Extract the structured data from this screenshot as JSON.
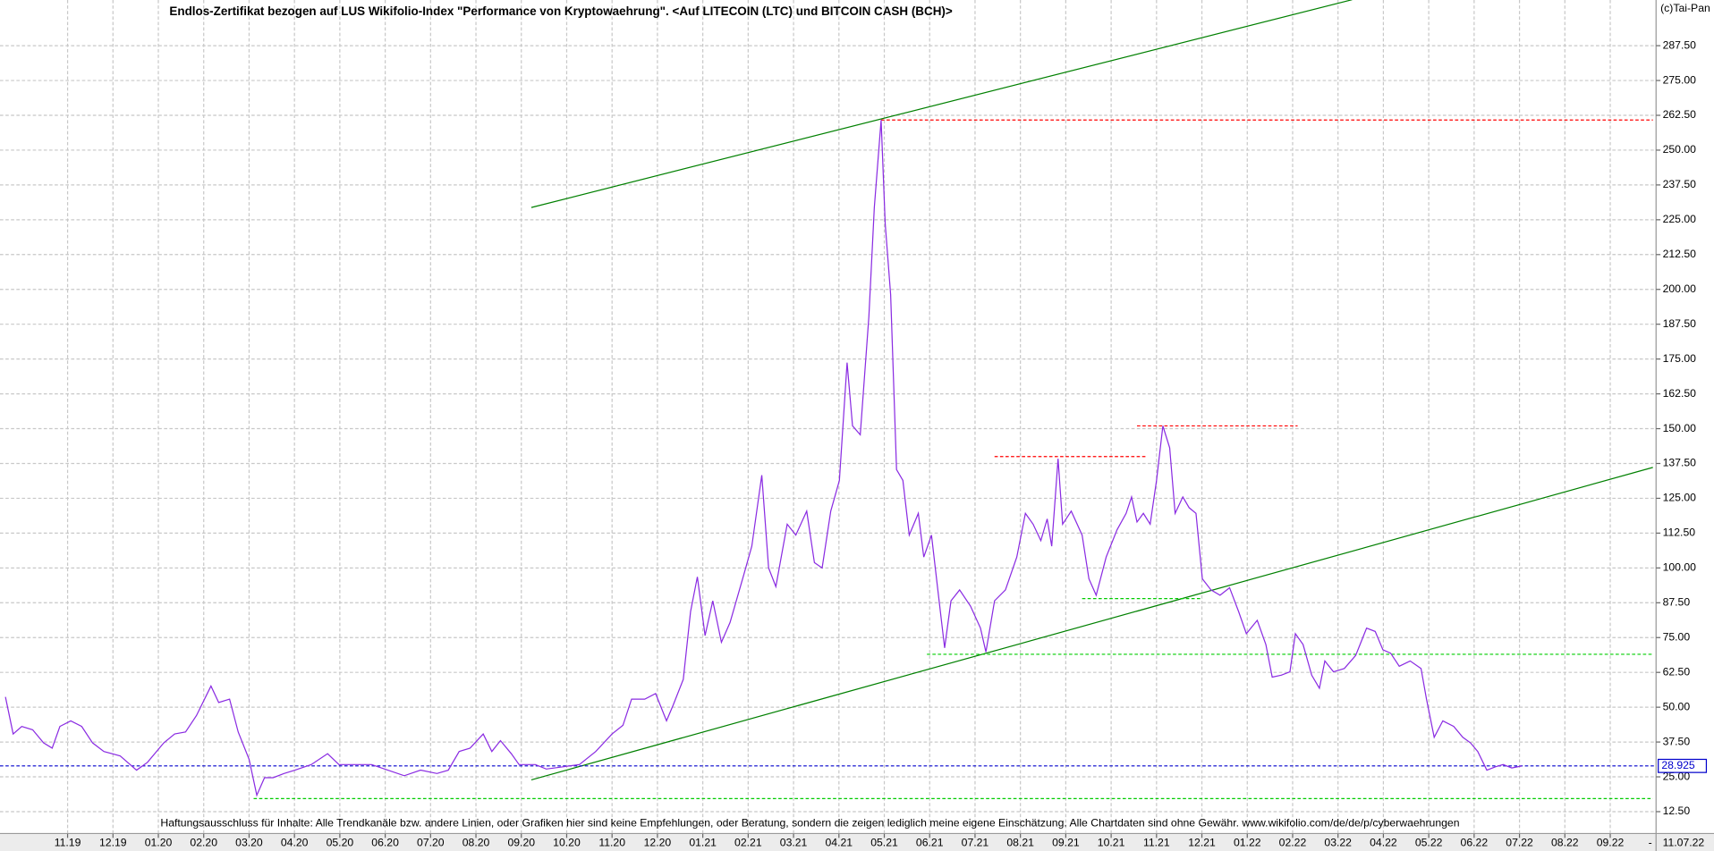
{
  "chart_data": {
    "type": "line",
    "title": "Endlos-Zertifikat bezogen auf LUS Wikifolio-Index \"Performance von Kryptowaehrung\". <Auf LITECOIN (LTC) und BITCOIN CASH (BCH)>",
    "copyright": "(c)Tai-Pan",
    "footnote": "Haftungsausschluss für Inhalte: Alle Trendkanäle bzw. andere Linien, oder Grafiken hier sind keine Empfehlungen, oder Beratung, sondern die zeigen lediglich meine eigene Einschätzung. Alle Chartdaten sind ohne Gewähr.  www.wikifolio.com/de/de/p/cyberwaehrungen",
    "date_label": "11.07.22",
    "current_value": 28.925,
    "current_color": "#0000cc",
    "color": "#8a2be2",
    "grid": true,
    "xlim": [
      -1.49,
      35.01
    ],
    "ylim": [
      4.65,
      303.9
    ],
    "xticks": [
      {
        "value": 0,
        "label": "11.19"
      },
      {
        "value": 1,
        "label": "12.19"
      },
      {
        "value": 2,
        "label": "01.20"
      },
      {
        "value": 3,
        "label": "02.20"
      },
      {
        "value": 4,
        "label": "03.20"
      },
      {
        "value": 5,
        "label": "04.20"
      },
      {
        "value": 6,
        "label": "05.20"
      },
      {
        "value": 7,
        "label": "06.20"
      },
      {
        "value": 8,
        "label": "07.20"
      },
      {
        "value": 9,
        "label": "08.20"
      },
      {
        "value": 10,
        "label": "09.20"
      },
      {
        "value": 11,
        "label": "10.20"
      },
      {
        "value": 12,
        "label": "11.20"
      },
      {
        "value": 13,
        "label": "12.20"
      },
      {
        "value": 14,
        "label": "01.21"
      },
      {
        "value": 15,
        "label": "02.21"
      },
      {
        "value": 16,
        "label": "03.21"
      },
      {
        "value": 17,
        "label": "04.21"
      },
      {
        "value": 18,
        "label": "05.21"
      },
      {
        "value": 19,
        "label": "06.21"
      },
      {
        "value": 20,
        "label": "07.21"
      },
      {
        "value": 21,
        "label": "08.21"
      },
      {
        "value": 22,
        "label": "09.21"
      },
      {
        "value": 23,
        "label": "10.21"
      },
      {
        "value": 24,
        "label": "11.21"
      },
      {
        "value": 25,
        "label": "12.21"
      },
      {
        "value": 26,
        "label": "01.22"
      },
      {
        "value": 27,
        "label": "02.22"
      },
      {
        "value": 28,
        "label": "03.22"
      },
      {
        "value": 29,
        "label": "04.22"
      },
      {
        "value": 30,
        "label": "05.22"
      },
      {
        "value": 31,
        "label": "06.22"
      },
      {
        "value": 32,
        "label": "07.22"
      },
      {
        "value": 33,
        "label": "08.22"
      },
      {
        "value": 34,
        "label": "09.22"
      }
    ],
    "yticks": [
      {
        "value": 12.5,
        "label": "12.50"
      },
      {
        "value": 25,
        "label": "25.00"
      },
      {
        "value": 37.5,
        "label": "37.50"
      },
      {
        "value": 50,
        "label": "50.00"
      },
      {
        "value": 62.5,
        "label": "62.50"
      },
      {
        "value": 75,
        "label": "75.00"
      },
      {
        "value": 87.5,
        "label": "87.50"
      },
      {
        "value": 100,
        "label": "100.00"
      },
      {
        "value": 112.5,
        "label": "112.50"
      },
      {
        "value": 125,
        "label": "125.00"
      },
      {
        "value": 137.5,
        "label": "137.50"
      },
      {
        "value": 150,
        "label": "150.00"
      },
      {
        "value": 162.5,
        "label": "162.50"
      },
      {
        "value": 175,
        "label": "175.00"
      },
      {
        "value": 187.5,
        "label": "187.50"
      },
      {
        "value": 200,
        "label": "200.00"
      },
      {
        "value": 212.5,
        "label": "212.50"
      },
      {
        "value": 225,
        "label": "225.00"
      },
      {
        "value": 237.5,
        "label": "237.50"
      },
      {
        "value": 250,
        "label": "250.00"
      },
      {
        "value": 262.5,
        "label": "262.50"
      },
      {
        "value": 275,
        "label": "275.00"
      },
      {
        "value": 287.5,
        "label": "287.50"
      }
    ],
    "x": [
      -1.37,
      -1.2,
      -1.01,
      -0.77,
      -0.53,
      -0.34,
      -0.17,
      0.07,
      0.31,
      0.55,
      0.8,
      1.16,
      1.52,
      1.76,
      2.12,
      2.36,
      2.6,
      2.84,
      3.16,
      3.33,
      3.57,
      3.76,
      4.0,
      4.17,
      4.34,
      4.53,
      4.77,
      5.01,
      5.37,
      5.73,
      5.98,
      6.34,
      6.7,
      7.06,
      7.42,
      7.78,
      8.14,
      8.39,
      8.63,
      8.87,
      9.16,
      9.35,
      9.54,
      9.78,
      9.95,
      10.31,
      10.55,
      10.92,
      11.28,
      11.64,
      12.0,
      12.24,
      12.43,
      12.72,
      12.96,
      13.2,
      13.35,
      13.57,
      13.73,
      13.88,
      14.05,
      14.22,
      14.41,
      14.6,
      14.89,
      15.08,
      15.3,
      15.45,
      15.61,
      15.86,
      16.05,
      16.29,
      16.46,
      16.63,
      16.82,
      17.01,
      17.18,
      17.3,
      17.47,
      17.66,
      17.78,
      17.93,
      18.02,
      18.14,
      18.27,
      18.41,
      18.55,
      18.75,
      18.87,
      19.04,
      19.18,
      19.33,
      19.47,
      19.66,
      19.9,
      20.12,
      20.24,
      20.43,
      20.67,
      20.92,
      21.11,
      21.28,
      21.45,
      21.59,
      21.69,
      21.83,
      21.93,
      22.12,
      22.36,
      22.51,
      22.67,
      22.89,
      23.13,
      23.33,
      23.45,
      23.57,
      23.71,
      23.86,
      24.0,
      24.14,
      24.29,
      24.41,
      24.58,
      24.72,
      24.87,
      25.01,
      25.2,
      25.4,
      25.61,
      25.81,
      25.98,
      26.22,
      26.41,
      26.55,
      26.75,
      26.94,
      27.06,
      27.23,
      27.42,
      27.59,
      27.71,
      27.9,
      28.14,
      28.39,
      28.63,
      28.82,
      28.99,
      29.16,
      29.35,
      29.59,
      29.83,
      29.95,
      30.12,
      30.31,
      30.55,
      30.75,
      30.92,
      31.08,
      31.28,
      31.47,
      31.64,
      31.83,
      32.05
    ],
    "values": [
      53.7,
      40.4,
      43.1,
      41.9,
      37.2,
      35.3,
      43.1,
      45.1,
      43.1,
      37.2,
      34.1,
      32.5,
      27.4,
      30.2,
      37.2,
      40.4,
      41.1,
      47.0,
      57.6,
      51.7,
      52.9,
      41.1,
      31.3,
      18.4,
      24.7,
      24.7,
      26.2,
      27.4,
      29.4,
      33.3,
      29.4,
      29.4,
      29.4,
      27.4,
      25.4,
      27.4,
      26.2,
      27.4,
      34.1,
      35.3,
      40.4,
      34.1,
      38.0,
      33.3,
      29.4,
      29.4,
      27.8,
      28.6,
      29.4,
      34.1,
      40.4,
      43.5,
      52.9,
      52.9,
      54.9,
      45.1,
      50.9,
      60.0,
      84.3,
      96.8,
      75.7,
      88.2,
      73.3,
      80.4,
      96.8,
      107.8,
      133.3,
      100.0,
      93.3,
      115.7,
      111.8,
      120.4,
      101.9,
      100.0,
      120.4,
      131.4,
      173.7,
      151.0,
      147.8,
      190.2,
      229.4,
      260.8,
      223.6,
      198.1,
      135.3,
      131.4,
      111.8,
      119.6,
      103.9,
      111.8,
      92.1,
      71.3,
      88.2,
      92.1,
      86.3,
      78.4,
      69.8,
      88.2,
      92.1,
      103.9,
      119.6,
      115.7,
      109.8,
      117.6,
      107.8,
      139.2,
      115.7,
      120.4,
      111.8,
      96.1,
      90.2,
      103.9,
      113.7,
      119.6,
      125.5,
      116.5,
      119.6,
      115.7,
      131.4,
      151.0,
      143.1,
      119.6,
      125.5,
      121.6,
      119.6,
      96.1,
      92.1,
      90.2,
      92.9,
      84.3,
      76.4,
      81.2,
      72.5,
      60.8,
      61.5,
      62.7,
      76.4,
      72.5,
      61.5,
      56.8,
      66.6,
      62.7,
      63.9,
      68.6,
      78.4,
      77.2,
      70.6,
      69.4,
      64.7,
      66.6,
      63.9,
      52.9,
      39.2,
      45.1,
      43.1,
      39.2,
      37.2,
      34.1,
      27.4,
      28.6,
      29.4,
      28.2,
      28.9
    ],
    "lines": [
      {
        "x": [
          10.22,
          28.31
        ],
        "y": [
          229.4,
          304.0
        ],
        "color": "#008000",
        "style": "solid"
      },
      {
        "x": [
          10.22,
          34.94
        ],
        "y": [
          23.9,
          136.1
        ],
        "color": "#008000",
        "style": "solid"
      },
      {
        "x": [
          17.93,
          34.94
        ],
        "y": [
          260.8,
          260.8
        ],
        "color": "#ff0000",
        "style": "dashed"
      },
      {
        "x": [
          20.43,
          23.76
        ],
        "y": [
          140.0,
          140.0
        ],
        "color": "#ff0000",
        "style": "dashed"
      },
      {
        "x": [
          23.57,
          27.11
        ],
        "y": [
          151.0,
          151.0
        ],
        "color": "#ff0000",
        "style": "dashed"
      },
      {
        "x": [
          22.36,
          25.01
        ],
        "y": [
          89.0,
          89.0
        ],
        "color": "#00cc00",
        "style": "dashed"
      },
      {
        "x": [
          18.94,
          34.94
        ],
        "y": [
          69.0,
          69.0
        ],
        "color": "#00cc00",
        "style": "dashed"
      },
      {
        "x": [
          4.1,
          34.94
        ],
        "y": [
          17.2,
          17.2
        ],
        "color": "#00cc00",
        "style": "dashed"
      }
    ]
  }
}
